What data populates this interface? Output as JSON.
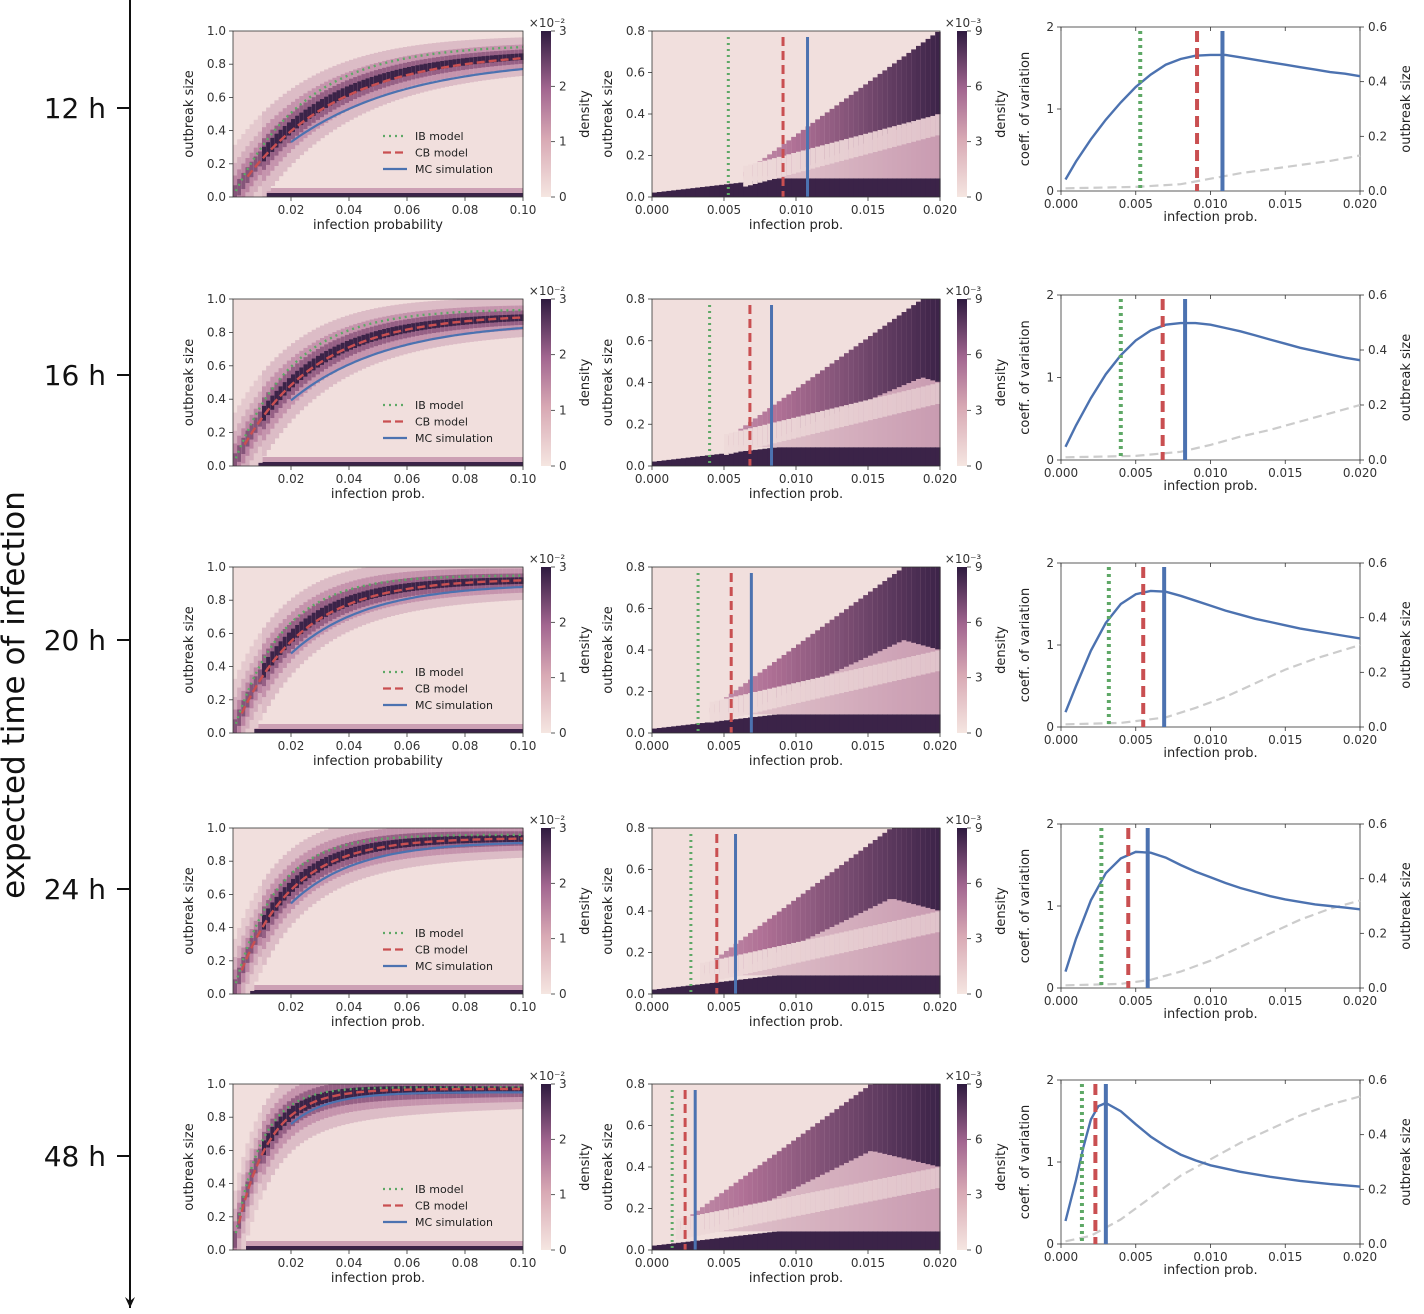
{
  "figure": {
    "y_axis_label": "expected time of infection",
    "colorbar_label": "density",
    "density_colormap": {
      "low": "#f5e6e1",
      "mid": "#b07196",
      "high": "#2e1a3f"
    },
    "colors": {
      "ib": "#5ea866",
      "cb": "#c94f51",
      "mc": "#4c72b0",
      "cv": "#4c72b0",
      "size": "#cccccc"
    }
  },
  "chart_data": [
    {
      "type": "heatmap",
      "row_label": "12 h",
      "panel": "left",
      "xlabel": "infection probability",
      "ylabel": "outbreak size",
      "xlim": [
        0,
        0.1
      ],
      "ylim": [
        0,
        1.0
      ],
      "xticks": [
        "0.02",
        "0.04",
        "0.06",
        "0.08",
        "0.10"
      ],
      "yticks": [
        "0.0",
        "0.2",
        "0.4",
        "0.6",
        "0.8",
        "1.0"
      ],
      "colorbar": {
        "max": 3,
        "ticks": [
          "0",
          "1",
          "2",
          "3"
        ],
        "exponent": "×10⁻²"
      },
      "legend": [
        "IB model",
        "CB model",
        "MC simulation"
      ],
      "saturation": {
        "ib": 0.92,
        "cb": 0.88,
        "mc": 0.84
      },
      "rate": {
        "ib": 40,
        "cb": 30,
        "mc": 25
      },
      "onset": {
        "ib": 0.0,
        "cb": 0.005,
        "mc": 0.02
      }
    },
    {
      "type": "heatmap",
      "row_label": "12 h",
      "panel": "middle",
      "xlabel": "infection prob.",
      "ylabel": "outbreak size",
      "xlim": [
        0,
        0.02
      ],
      "ylim": [
        0,
        0.8
      ],
      "xticks": [
        "0.000",
        "0.005",
        "0.010",
        "0.015",
        "0.020"
      ],
      "yticks": [
        "0.0",
        "0.2",
        "0.4",
        "0.6",
        "0.8"
      ],
      "colorbar": {
        "max": 9,
        "ticks": [
          "0",
          "3",
          "6",
          "9"
        ],
        "exponent": "×10⁻³"
      },
      "thresholds": {
        "ib": 0.0053,
        "cb": 0.0091,
        "mc": 0.0108
      },
      "upper_branch_saturation": 0.72
    },
    {
      "type": "line",
      "row_label": "12 h",
      "panel": "right",
      "xlabel": "infection prob.",
      "ylabel_left": "coeff. of variation",
      "ylabel_right": "outbreak size",
      "xlim": [
        0,
        0.02
      ],
      "xticks": [
        "0.000",
        "0.005",
        "0.010",
        "0.015",
        "0.020"
      ],
      "left_ylim": [
        0,
        2
      ],
      "left_yticks": [
        "0",
        "1",
        "2"
      ],
      "right_ylim": [
        0,
        0.6
      ],
      "right_yticks": [
        "0.0",
        "0.2",
        "0.4",
        "0.6"
      ],
      "series": [
        {
          "name": "coeff. of variation",
          "x": [
            0.0003,
            0.001,
            0.002,
            0.003,
            0.004,
            0.005,
            0.006,
            0.007,
            0.008,
            0.009,
            0.01,
            0.011,
            0.012,
            0.013,
            0.014,
            0.015,
            0.016,
            0.017,
            0.018,
            0.019,
            0.02
          ],
          "values": [
            0.14,
            0.36,
            0.63,
            0.87,
            1.08,
            1.27,
            1.42,
            1.54,
            1.61,
            1.65,
            1.66,
            1.66,
            1.63,
            1.6,
            1.57,
            1.54,
            1.51,
            1.48,
            1.45,
            1.43,
            1.4
          ]
        },
        {
          "name": "outbreak size",
          "x": [
            0.0003,
            0.005,
            0.008,
            0.01,
            0.012,
            0.014,
            0.016,
            0.018,
            0.02
          ],
          "values": [
            0.01,
            0.015,
            0.025,
            0.045,
            0.065,
            0.08,
            0.095,
            0.11,
            0.13
          ]
        }
      ],
      "thresholds": {
        "ib": 0.0053,
        "cb": 0.0091,
        "mc": 0.0108
      }
    },
    {
      "type": "heatmap",
      "row_label": "16 h",
      "panel": "left",
      "xlabel": "infection prob.",
      "ylabel": "outbreak size",
      "xlim": [
        0,
        0.1
      ],
      "ylim": [
        0,
        1.0
      ],
      "xticks": [
        "0.02",
        "0.04",
        "0.06",
        "0.08",
        "0.10"
      ],
      "yticks": [
        "0.0",
        "0.2",
        "0.4",
        "0.6",
        "0.8",
        "1.0"
      ],
      "colorbar": {
        "max": 3,
        "ticks": [
          "0",
          "1",
          "2",
          "3"
        ],
        "exponent": "×10⁻²"
      },
      "legend": [
        "IB model",
        "CB model",
        "MC simulation"
      ],
      "saturation": {
        "ib": 0.94,
        "cb": 0.91,
        "mc": 0.87
      },
      "rate": {
        "ib": 50,
        "cb": 38,
        "mc": 30
      },
      "onset": {
        "ib": 0.0,
        "cb": 0.004,
        "mc": 0.02
      }
    },
    {
      "type": "heatmap",
      "row_label": "16 h",
      "panel": "middle",
      "xlabel": "infection prob.",
      "ylabel": "outbreak size",
      "xlim": [
        0,
        0.02
      ],
      "ylim": [
        0,
        0.8
      ],
      "xticks": [
        "0.000",
        "0.005",
        "0.010",
        "0.015",
        "0.020"
      ],
      "yticks": [
        "0.0",
        "0.2",
        "0.4",
        "0.6",
        "0.8"
      ],
      "colorbar": {
        "max": 9,
        "ticks": [
          "0",
          "3",
          "6",
          "9"
        ],
        "exponent": "×10⁻³"
      },
      "thresholds": {
        "ib": 0.004,
        "cb": 0.0068,
        "mc": 0.0083
      },
      "upper_branch_saturation": 0.78
    },
    {
      "type": "line",
      "row_label": "16 h",
      "panel": "right",
      "xlabel": "infection prob.",
      "ylabel_left": "coeff. of variation",
      "ylabel_right": "outbreak size",
      "xlim": [
        0,
        0.02
      ],
      "xticks": [
        "0.000",
        "0.005",
        "0.010",
        "0.015",
        "0.020"
      ],
      "left_ylim": [
        0,
        2
      ],
      "left_yticks": [
        "0",
        "1",
        "2"
      ],
      "right_ylim": [
        0,
        0.6
      ],
      "right_yticks": [
        "0.0",
        "0.2",
        "0.4",
        "0.6"
      ],
      "series": [
        {
          "name": "coeff. of variation",
          "x": [
            0.0003,
            0.001,
            0.002,
            0.003,
            0.004,
            0.005,
            0.006,
            0.007,
            0.008,
            0.009,
            0.01,
            0.011,
            0.012,
            0.013,
            0.014,
            0.015,
            0.016,
            0.017,
            0.018,
            0.019,
            0.02
          ],
          "values": [
            0.16,
            0.42,
            0.75,
            1.04,
            1.27,
            1.45,
            1.57,
            1.64,
            1.66,
            1.66,
            1.64,
            1.6,
            1.56,
            1.51,
            1.46,
            1.41,
            1.36,
            1.32,
            1.28,
            1.24,
            1.21
          ]
        },
        {
          "name": "outbreak size",
          "x": [
            0.0003,
            0.005,
            0.008,
            0.01,
            0.012,
            0.014,
            0.016,
            0.018,
            0.02
          ],
          "values": [
            0.01,
            0.015,
            0.03,
            0.055,
            0.085,
            0.11,
            0.14,
            0.17,
            0.2
          ]
        }
      ],
      "thresholds": {
        "ib": 0.004,
        "cb": 0.0068,
        "mc": 0.0083
      }
    },
    {
      "type": "heatmap",
      "row_label": "20 h",
      "panel": "left",
      "xlabel": "infection probability",
      "ylabel": "outbreak size",
      "xlim": [
        0,
        0.1
      ],
      "ylim": [
        0,
        1.0
      ],
      "xticks": [
        "0.02",
        "0.04",
        "0.06",
        "0.08",
        "0.10"
      ],
      "yticks": [
        "0.0",
        "0.2",
        "0.4",
        "0.6",
        "0.8",
        "1.0"
      ],
      "colorbar": {
        "max": 3,
        "ticks": [
          "0",
          "1",
          "2",
          "3"
        ],
        "exponent": "×10⁻²"
      },
      "legend": [
        "IB model",
        "CB model",
        "MC simulation"
      ],
      "saturation": {
        "ib": 0.95,
        "cb": 0.93,
        "mc": 0.9
      },
      "rate": {
        "ib": 60,
        "cb": 45,
        "mc": 38
      },
      "onset": {
        "ib": 0.0,
        "cb": 0.003,
        "mc": 0.02
      }
    },
    {
      "type": "heatmap",
      "row_label": "20 h",
      "panel": "middle",
      "xlabel": "infection prob.",
      "ylabel": "outbreak size",
      "xlim": [
        0,
        0.02
      ],
      "ylim": [
        0,
        0.8
      ],
      "xticks": [
        "0.000",
        "0.005",
        "0.010",
        "0.015",
        "0.020"
      ],
      "yticks": [
        "0.0",
        "0.2",
        "0.4",
        "0.6",
        "0.8"
      ],
      "colorbar": {
        "max": 9,
        "ticks": [
          "0",
          "3",
          "6",
          "9"
        ],
        "exponent": "×10⁻³"
      },
      "thresholds": {
        "ib": 0.0032,
        "cb": 0.0055,
        "mc": 0.0069
      },
      "upper_branch_saturation": 0.85
    },
    {
      "type": "line",
      "row_label": "20 h",
      "panel": "right",
      "xlabel": "infection prob.",
      "ylabel_left": "coeff. of variation",
      "ylabel_right": "outbreak size",
      "xlim": [
        0,
        0.02
      ],
      "xticks": [
        "0.000",
        "0.005",
        "0.010",
        "0.015",
        "0.020"
      ],
      "left_ylim": [
        0,
        2
      ],
      "left_yticks": [
        "0",
        "1",
        "2"
      ],
      "right_ylim": [
        0,
        0.6
      ],
      "right_yticks": [
        "0.0",
        "0.2",
        "0.4",
        "0.6"
      ],
      "series": [
        {
          "name": "coeff. of variation",
          "x": [
            0.0003,
            0.001,
            0.002,
            0.003,
            0.004,
            0.005,
            0.006,
            0.007,
            0.008,
            0.009,
            0.01,
            0.011,
            0.012,
            0.013,
            0.014,
            0.015,
            0.016,
            0.017,
            0.018,
            0.019,
            0.02
          ],
          "values": [
            0.18,
            0.5,
            0.93,
            1.27,
            1.5,
            1.62,
            1.66,
            1.65,
            1.6,
            1.54,
            1.48,
            1.42,
            1.37,
            1.32,
            1.28,
            1.24,
            1.2,
            1.17,
            1.14,
            1.11,
            1.08
          ]
        },
        {
          "name": "outbreak size",
          "x": [
            0.0003,
            0.004,
            0.007,
            0.009,
            0.011,
            0.013,
            0.015,
            0.017,
            0.02
          ],
          "values": [
            0.01,
            0.015,
            0.035,
            0.07,
            0.11,
            0.16,
            0.21,
            0.25,
            0.3
          ]
        }
      ],
      "thresholds": {
        "ib": 0.0032,
        "cb": 0.0055,
        "mc": 0.0069
      }
    },
    {
      "type": "heatmap",
      "row_label": "24 h",
      "panel": "left",
      "xlabel": "infection prob.",
      "ylabel": "outbreak size",
      "xlim": [
        0,
        0.1
      ],
      "ylim": [
        0,
        1.0
      ],
      "xticks": [
        "0.02",
        "0.04",
        "0.06",
        "0.08",
        "0.10"
      ],
      "yticks": [
        "0.0",
        "0.2",
        "0.4",
        "0.6",
        "0.8",
        "1.0"
      ],
      "colorbar": {
        "max": 3,
        "ticks": [
          "0",
          "1",
          "2",
          "3"
        ],
        "exponent": "×10⁻²"
      },
      "legend": [
        "IB model",
        "CB model",
        "MC simulation"
      ],
      "saturation": {
        "ib": 0.96,
        "cb": 0.94,
        "mc": 0.92
      },
      "rate": {
        "ib": 70,
        "cb": 55,
        "mc": 45
      },
      "onset": {
        "ib": 0.0,
        "cb": 0.003,
        "mc": 0.02
      }
    },
    {
      "type": "heatmap",
      "row_label": "24 h",
      "panel": "middle",
      "xlabel": "infection prob.",
      "ylabel": "outbreak size",
      "xlim": [
        0,
        0.02
      ],
      "ylim": [
        0,
        0.8
      ],
      "xticks": [
        "0.000",
        "0.005",
        "0.010",
        "0.015",
        "0.020"
      ],
      "yticks": [
        "0.0",
        "0.2",
        "0.4",
        "0.6",
        "0.8"
      ],
      "colorbar": {
        "max": 9,
        "ticks": [
          "0",
          "3",
          "6",
          "9"
        ],
        "exponent": "×10⁻³"
      },
      "thresholds": {
        "ib": 0.0027,
        "cb": 0.0045,
        "mc": 0.0058
      },
      "upper_branch_saturation": 0.9
    },
    {
      "type": "line",
      "row_label": "24 h",
      "panel": "right",
      "xlabel": "infection prob.",
      "ylabel_left": "coeff. of variation",
      "ylabel_right": "outbreak size",
      "xlim": [
        0,
        0.02
      ],
      "xticks": [
        "0.000",
        "0.005",
        "0.010",
        "0.015",
        "0.020"
      ],
      "left_ylim": [
        0,
        2
      ],
      "left_yticks": [
        "0",
        "1",
        "2"
      ],
      "right_ylim": [
        0,
        0.6
      ],
      "right_yticks": [
        "0.0",
        "0.2",
        "0.4",
        "0.6"
      ],
      "series": [
        {
          "name": "coeff. of variation",
          "x": [
            0.0003,
            0.001,
            0.002,
            0.003,
            0.004,
            0.005,
            0.006,
            0.007,
            0.008,
            0.009,
            0.01,
            0.011,
            0.012,
            0.013,
            0.014,
            0.015,
            0.016,
            0.017,
            0.018,
            0.019,
            0.02
          ],
          "values": [
            0.2,
            0.6,
            1.07,
            1.4,
            1.58,
            1.66,
            1.65,
            1.59,
            1.5,
            1.42,
            1.35,
            1.28,
            1.22,
            1.17,
            1.12,
            1.08,
            1.05,
            1.02,
            1.0,
            0.98,
            0.96
          ]
        },
        {
          "name": "outbreak size",
          "x": [
            0.0003,
            0.004,
            0.006,
            0.008,
            0.01,
            0.012,
            0.014,
            0.016,
            0.018,
            0.02
          ],
          "values": [
            0.01,
            0.015,
            0.03,
            0.06,
            0.1,
            0.15,
            0.2,
            0.25,
            0.29,
            0.32
          ]
        }
      ],
      "thresholds": {
        "ib": 0.0027,
        "cb": 0.0045,
        "mc": 0.0058
      }
    },
    {
      "type": "heatmap",
      "row_label": "48 h",
      "panel": "left",
      "xlabel": "infection prob.",
      "ylabel": "outbreak size",
      "xlim": [
        0,
        0.1
      ],
      "ylim": [
        0,
        1.0
      ],
      "xticks": [
        "0.02",
        "0.04",
        "0.06",
        "0.08",
        "0.10"
      ],
      "yticks": [
        "0.0",
        "0.2",
        "0.4",
        "0.6",
        "0.8",
        "1.0"
      ],
      "colorbar": {
        "max": 3,
        "ticks": [
          "0",
          "1",
          "2",
          "3"
        ],
        "exponent": "×10⁻²"
      },
      "legend": [
        "IB model",
        "CB model",
        "MC simulation"
      ],
      "saturation": {
        "ib": 0.98,
        "cb": 0.97,
        "mc": 0.95
      },
      "rate": {
        "ib": 110,
        "cb": 90,
        "mc": 80
      },
      "onset": {
        "ib": 0.0,
        "cb": 0.002,
        "mc": 0.02
      }
    },
    {
      "type": "heatmap",
      "row_label": "48 h",
      "panel": "middle",
      "xlabel": "infection prob.",
      "ylabel": "outbreak size",
      "xlim": [
        0,
        0.02
      ],
      "ylim": [
        0,
        0.8
      ],
      "xticks": [
        "0.000",
        "0.005",
        "0.010",
        "0.015",
        "0.020"
      ],
      "yticks": [
        "0.0",
        "0.2",
        "0.4",
        "0.6",
        "0.8"
      ],
      "colorbar": {
        "max": 9,
        "ticks": [
          "0",
          "3",
          "6",
          "9"
        ],
        "exponent": "×10⁻³"
      },
      "thresholds": {
        "ib": 0.0014,
        "cb": 0.0023,
        "mc": 0.003
      },
      "upper_branch_saturation": 0.97
    },
    {
      "type": "line",
      "row_label": "48 h",
      "panel": "right",
      "xlabel": "infection prob.",
      "ylabel_left": "coeff. of variation",
      "ylabel_right": "outbreak size",
      "xlim": [
        0,
        0.02
      ],
      "xticks": [
        "0.000",
        "0.005",
        "0.010",
        "0.015",
        "0.020"
      ],
      "left_ylim": [
        0,
        2
      ],
      "left_yticks": [
        "0",
        "1",
        "2"
      ],
      "right_ylim": [
        0,
        0.6
      ],
      "right_yticks": [
        "0.0",
        "0.2",
        "0.4",
        "0.6"
      ],
      "series": [
        {
          "name": "coeff. of variation",
          "x": [
            0.0003,
            0.001,
            0.0015,
            0.002,
            0.0025,
            0.003,
            0.004,
            0.005,
            0.006,
            0.007,
            0.008,
            0.009,
            0.01,
            0.012,
            0.014,
            0.016,
            0.018,
            0.02
          ],
          "values": [
            0.28,
            0.78,
            1.18,
            1.52,
            1.68,
            1.72,
            1.62,
            1.46,
            1.31,
            1.19,
            1.09,
            1.02,
            0.96,
            0.88,
            0.82,
            0.77,
            0.73,
            0.7
          ]
        },
        {
          "name": "outbreak size",
          "x": [
            0.0003,
            0.002,
            0.004,
            0.006,
            0.008,
            0.01,
            0.012,
            0.014,
            0.016,
            0.018,
            0.02
          ],
          "values": [
            0.01,
            0.03,
            0.09,
            0.17,
            0.25,
            0.31,
            0.37,
            0.42,
            0.47,
            0.51,
            0.54
          ]
        }
      ],
      "thresholds": {
        "ib": 0.0014,
        "cb": 0.0023,
        "mc": 0.003
      }
    }
  ]
}
